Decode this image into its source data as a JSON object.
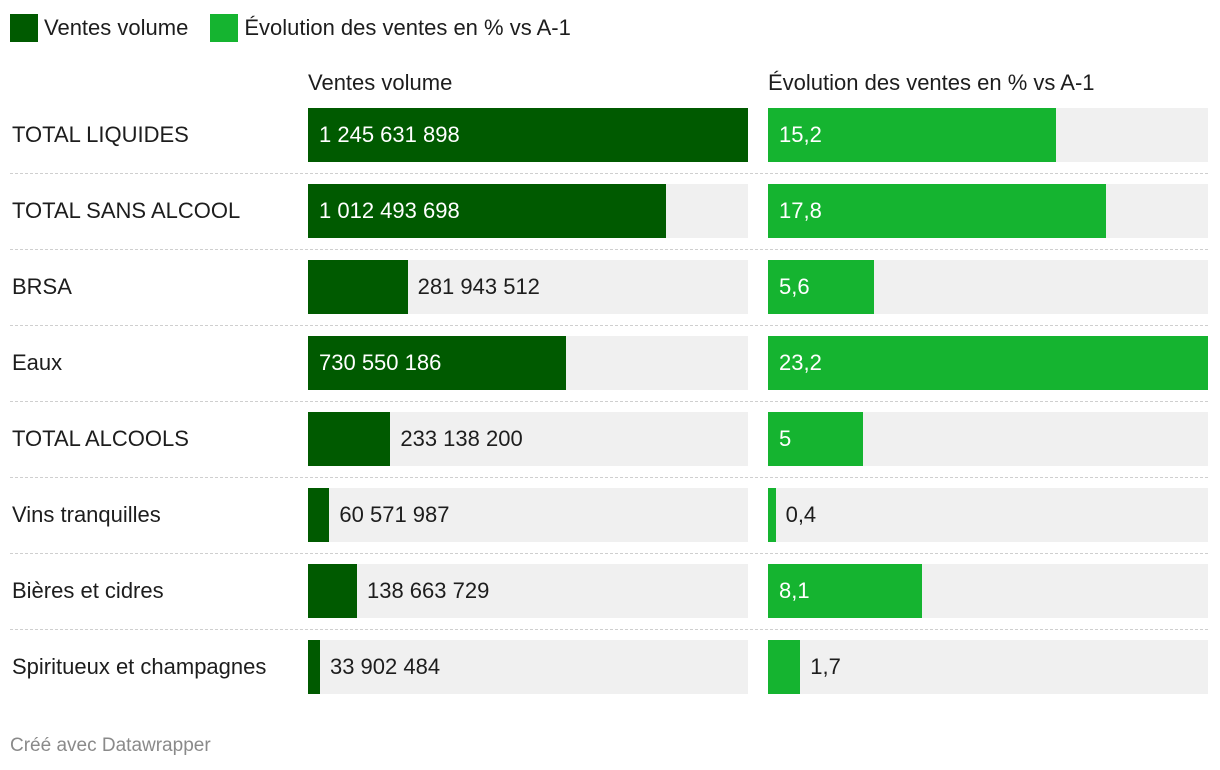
{
  "legend": [
    {
      "label": "Ventes volume",
      "color": "#005a00"
    },
    {
      "label": "Évolution des ventes en % vs A-1",
      "color": "#15b430"
    }
  ],
  "footer": "Créé avec Datawrapper",
  "chart_data": {
    "type": "table",
    "columns": [
      "Ventes volume",
      "Évolution des ventes en % vs A-1"
    ],
    "rows": [
      {
        "label": "TOTAL LIQUIDES",
        "volume": 1245631898,
        "volume_text": "1 245 631 898",
        "evolution": 15.2,
        "evolution_text": "15,2"
      },
      {
        "label": "TOTAL SANS ALCOOL",
        "volume": 1012493698,
        "volume_text": "1 012 493 698",
        "evolution": 17.8,
        "evolution_text": "17,8"
      },
      {
        "label": "BRSA",
        "volume": 281943512,
        "volume_text": "281 943 512",
        "evolution": 5.6,
        "evolution_text": "5,6"
      },
      {
        "label": "Eaux",
        "volume": 730550186,
        "volume_text": "730 550 186",
        "evolution": 23.2,
        "evolution_text": "23,2"
      },
      {
        "label": "TOTAL ALCOOLS",
        "volume": 233138200,
        "volume_text": "233 138 200",
        "evolution": 5,
        "evolution_text": "5"
      },
      {
        "label": "Vins tranquilles",
        "volume": 60571987,
        "volume_text": "60 571 987",
        "evolution": 0.4,
        "evolution_text": "0,4"
      },
      {
        "label": "Bières et cidres",
        "volume": 138663729,
        "volume_text": "138 663 729",
        "evolution": 8.1,
        "evolution_text": "8,1"
      },
      {
        "label": "Spiritueux et champagnes",
        "volume": 33902484,
        "volume_text": "33 902 484",
        "evolution": 1.7,
        "evolution_text": "1,7"
      }
    ],
    "volume_max": 1245631898,
    "evolution_max": 23.2
  }
}
